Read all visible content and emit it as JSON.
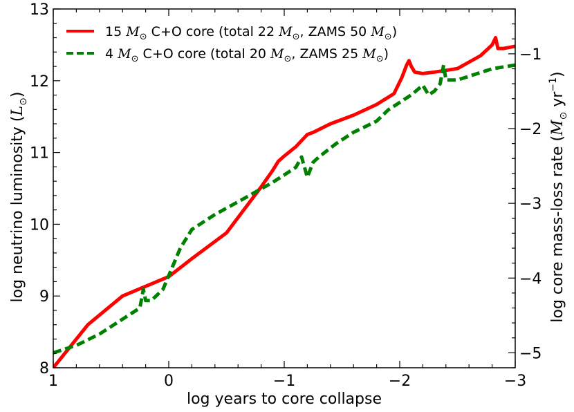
{
  "chart_data": {
    "type": "line",
    "xlabel": "log years to core collapse",
    "ylabel_left": "log neutrino luminosity (L⊙)",
    "ylabel_right": "log core mass-loss rate (M⊙ yr⁻¹)",
    "xlim": [
      1,
      -3
    ],
    "ylim_left": [
      8,
      13
    ],
    "ylim_right": [
      -5.2,
      -0.4
    ],
    "x_ticks": [
      1,
      0,
      -1,
      -2,
      -3
    ],
    "x_tick_labels": [
      "1",
      "0",
      "−1",
      "−2",
      "−3"
    ],
    "y_left_ticks": [
      8,
      9,
      10,
      11,
      12,
      13
    ],
    "y_left_tick_labels": [
      "8",
      "9",
      "10",
      "11",
      "12",
      "13"
    ],
    "y_right_ticks": [
      -5,
      -4,
      -3,
      -2,
      -1
    ],
    "y_right_tick_labels": [
      "−5",
      "−4",
      "−3",
      "−2",
      "−1"
    ],
    "grid": false,
    "legend_position": "top-left",
    "series": [
      {
        "name": "15 M⊙ C+O core (total 22 M⊙, ZAMS 50 M⊙)",
        "color": "#ff0000",
        "style": "solid",
        "axis": "left",
        "x": [
          1.0,
          0.7,
          0.4,
          0.0,
          -0.2,
          -0.5,
          -0.8,
          -0.9,
          -0.95,
          -1.0,
          -1.1,
          -1.2,
          -1.25,
          -1.4,
          -1.6,
          -1.8,
          -1.95,
          -2.02,
          -2.06,
          -2.08,
          -2.1,
          -2.13,
          -2.2,
          -2.3,
          -2.5,
          -2.7,
          -2.8,
          -2.83,
          -2.85,
          -2.9,
          -3.0
        ],
        "y": [
          8.0,
          8.6,
          9.0,
          9.27,
          9.52,
          9.88,
          10.52,
          10.75,
          10.88,
          10.95,
          11.08,
          11.25,
          11.28,
          11.4,
          11.52,
          11.67,
          11.82,
          12.05,
          12.22,
          12.28,
          12.2,
          12.12,
          12.1,
          12.12,
          12.17,
          12.35,
          12.5,
          12.6,
          12.45,
          12.45,
          12.48
        ]
      },
      {
        "name": "4 M⊙ C+O core (total 20 M⊙, ZAMS 25 M⊙)",
        "color": "#008000",
        "style": "dashed",
        "axis": "right",
        "x": [
          1.0,
          0.8,
          0.6,
          0.4,
          0.25,
          0.22,
          0.2,
          0.15,
          0.05,
          -0.1,
          -0.2,
          -0.4,
          -0.6,
          -0.9,
          -1.1,
          -1.15,
          -1.2,
          -1.25,
          -1.3,
          -1.45,
          -1.6,
          -1.8,
          -1.9,
          -2.0,
          -2.1,
          -2.2,
          -2.25,
          -2.3,
          -2.35,
          -2.38,
          -2.4,
          -2.5,
          -2.7,
          -2.8,
          -3.0
        ],
        "y": [
          -5.0,
          -4.9,
          -4.75,
          -4.55,
          -4.4,
          -4.15,
          -4.3,
          -4.3,
          -4.15,
          -3.6,
          -3.35,
          -3.15,
          -2.98,
          -2.72,
          -2.52,
          -2.38,
          -2.65,
          -2.45,
          -2.38,
          -2.2,
          -2.05,
          -1.9,
          -1.75,
          -1.65,
          -1.55,
          -1.42,
          -1.55,
          -1.5,
          -1.4,
          -1.15,
          -1.35,
          -1.35,
          -1.25,
          -1.2,
          -1.15
        ]
      }
    ]
  }
}
